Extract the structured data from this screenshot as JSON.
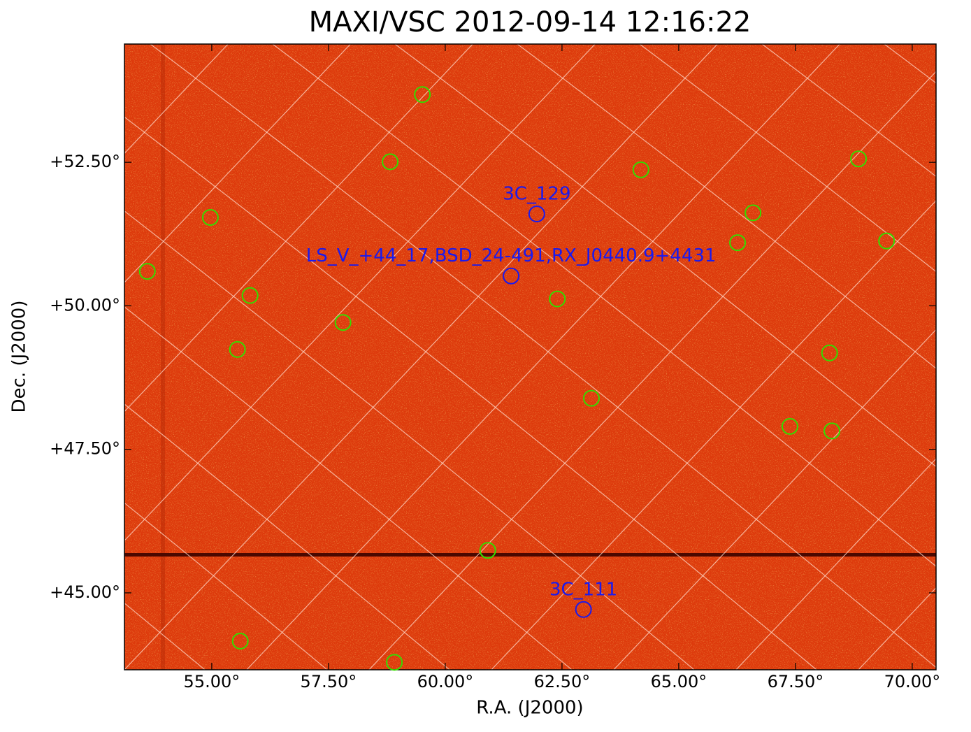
{
  "chart_data": {
    "type": "skymap",
    "title": "MAXI/VSC 2012-09-14 12:16:22",
    "xlabel": "R.A. (J2000)",
    "ylabel": "Dec. (J2000)",
    "xlim": [
      53.13,
      70.51
    ],
    "ylim": [
      43.66,
      54.56
    ],
    "xticks": [
      {
        "value": 55,
        "label": "55.00°"
      },
      {
        "value": 57.5,
        "label": "57.50°"
      },
      {
        "value": 60,
        "label": "60.00°"
      },
      {
        "value": 62.5,
        "label": "62.50°"
      },
      {
        "value": 65,
        "label": "65.00°"
      },
      {
        "value": 67.5,
        "label": "67.50°"
      },
      {
        "value": 70,
        "label": "70.00°"
      }
    ],
    "yticks": [
      {
        "value": 45,
        "label": "+45.00°"
      },
      {
        "value": 47.5,
        "label": "+47.50°"
      },
      {
        "value": 50,
        "label": "+50.00°"
      },
      {
        "value": 52.5,
        "label": "+52.50°"
      }
    ],
    "sources": {
      "color": "#33dd00",
      "x": [
        59.51,
        58.82,
        64.19,
        68.85,
        54.97,
        66.59,
        66.26,
        69.45,
        53.62,
        55.82,
        62.4,
        57.81,
        55.55,
        68.23,
        63.13,
        67.38,
        68.28,
        60.91,
        55.61,
        58.91
      ],
      "y": [
        53.68,
        52.51,
        52.37,
        52.56,
        51.54,
        51.62,
        51.1,
        51.13,
        50.6,
        50.18,
        50.12,
        49.71,
        49.24,
        49.18,
        48.39,
        47.9,
        47.82,
        45.74,
        44.16,
        43.79
      ]
    },
    "annotations": {
      "color": "#1a1aee",
      "labels": [
        "3C_129",
        "LS_V_+44_17,BSD_24-491,RX_J0440.9+4431",
        "3C_111"
      ],
      "x": [
        61.96,
        61.41,
        62.96
      ],
      "y": [
        51.6,
        50.52,
        44.71
      ]
    }
  }
}
